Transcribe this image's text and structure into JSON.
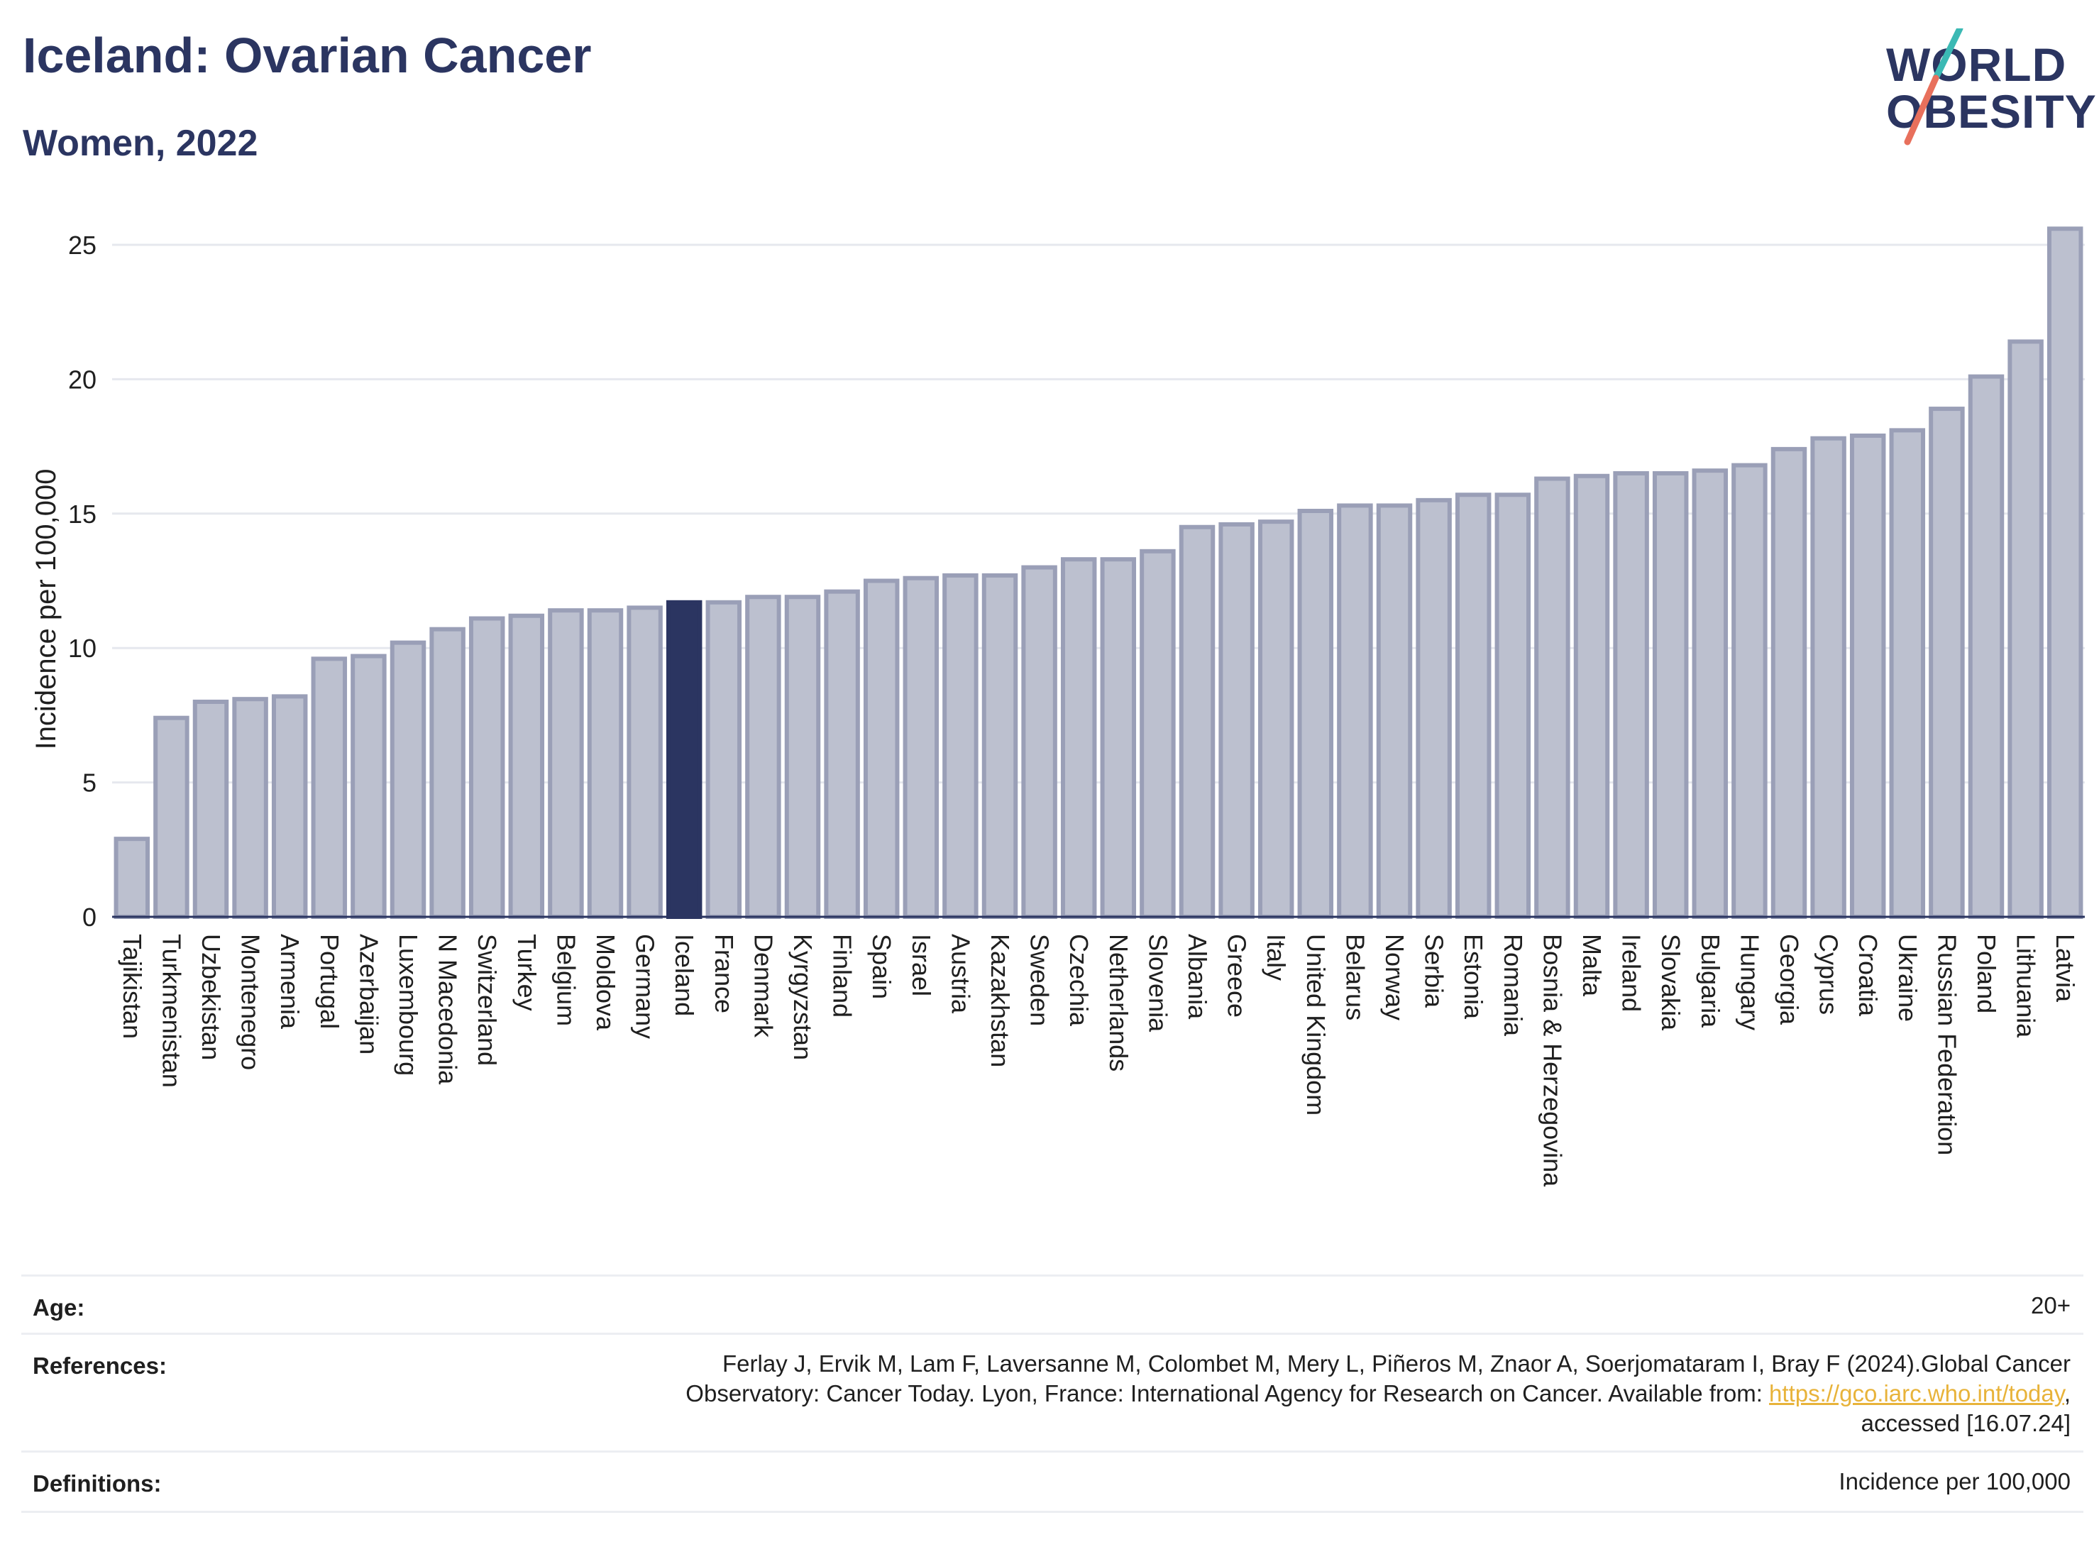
{
  "header": {
    "title": "Iceland: Ovarian Cancer",
    "subtitle": "Women, 2022",
    "logo_line1": "WORLD",
    "logo_line2": "OBESITY"
  },
  "colors": {
    "title": "#2b3561",
    "bar": "#bcc0cf",
    "bar_border": "#9a9fb7",
    "highlight": "#2b3561",
    "logo_teal": "#3bb9b4",
    "logo_coral": "#e8705c",
    "link": "#e8b33a"
  },
  "chart_data": {
    "type": "bar",
    "title": "Iceland: Ovarian Cancer",
    "subtitle": "Women, 2022",
    "ylabel": "Incidence per 100,000",
    "xlabel": "",
    "ylim": [
      0,
      26
    ],
    "yticks": [
      0,
      5,
      10,
      15,
      20,
      25
    ],
    "grid": true,
    "highlight": "Iceland",
    "categories": [
      "Tajikistan",
      "Turkmenistan",
      "Uzbekistan",
      "Montenegro",
      "Armenia",
      "Portugal",
      "Azerbaijan",
      "Luxembourg",
      "N Macedonia",
      "Switzerland",
      "Turkey",
      "Belgium",
      "Moldova",
      "Germany",
      "Iceland",
      "France",
      "Denmark",
      "Kyrgyzstan",
      "Finland",
      "Spain",
      "Israel",
      "Austria",
      "Kazakhstan",
      "Sweden",
      "Czechia",
      "Netherlands",
      "Slovenia",
      "Albania",
      "Greece",
      "Italy",
      "United Kingdom",
      "Belarus",
      "Norway",
      "Serbia",
      "Estonia",
      "Romania",
      "Bosnia & Herzegovina",
      "Malta",
      "Ireland",
      "Slovakia",
      "Bulgaria",
      "Hungary",
      "Georgia",
      "Cyprus",
      "Croatia",
      "Ukraine",
      "Russian Federation",
      "Poland",
      "Lithuania",
      "Latvia"
    ],
    "values": [
      2.9,
      7.4,
      8.0,
      8.1,
      8.2,
      9.6,
      9.7,
      10.2,
      10.7,
      11.1,
      11.2,
      11.4,
      11.4,
      11.5,
      11.7,
      11.7,
      11.9,
      11.9,
      12.1,
      12.5,
      12.6,
      12.7,
      12.7,
      13.0,
      13.3,
      13.3,
      13.6,
      14.5,
      14.6,
      14.7,
      15.1,
      15.3,
      15.3,
      15.5,
      15.7,
      15.7,
      16.3,
      16.4,
      16.5,
      16.5,
      16.6,
      16.8,
      17.4,
      17.8,
      17.9,
      18.1,
      18.9,
      20.1,
      21.4,
      25.6
    ]
  },
  "info": {
    "age_label": "Age:",
    "age_value": "20+",
    "references_label": "References:",
    "references_line1": "Ferlay J, Ervik M, Lam F, Laversanne M, Colombet M, Mery L, Piñeros M, Znaor A, Soerjomataram I, Bray F (2024).Global Cancer",
    "references_line2_pre": "Observatory: Cancer Today. Lyon, France: International Agency for Research on Cancer. Available from: ",
    "references_link": "https://gco.iarc.who.int/today",
    "references_line2_post": ",",
    "references_line3": "accessed [16.07.24]",
    "definitions_label": "Definitions:",
    "definitions_value": "Incidence per 100,000"
  }
}
